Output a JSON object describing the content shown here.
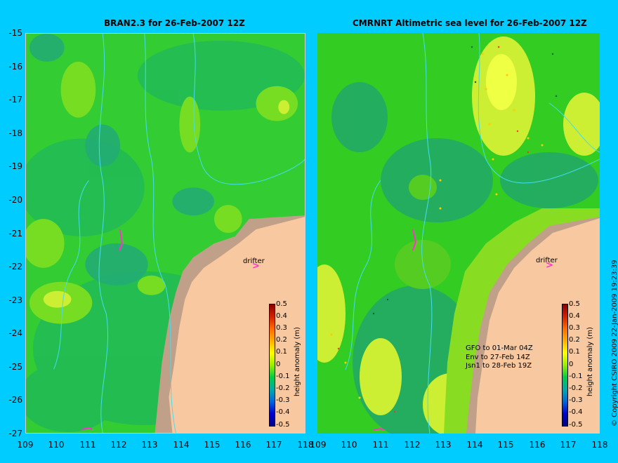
{
  "left_panel": {
    "title": "BRAN2.3 for 26-Feb-2007 12Z",
    "drifter_label": "drifter",
    "colorbar": {
      "title": "height anomaly (m)",
      "ticks": [
        "0.5",
        "0.4",
        "0.3",
        "0.2",
        "0.1",
        "0",
        "-0.1",
        "-0.2",
        "-0.3",
        "-0.4",
        "-0.5"
      ]
    }
  },
  "right_panel": {
    "title": "CMRNRT Altimetric sea level  for 26-Feb-2007 12Z",
    "drifter_label": "drifter",
    "colorbar": {
      "title": "height anomaly (m)",
      "ticks": [
        "0.5",
        "0.4",
        "0.3",
        "0.2",
        "0.1",
        "0",
        "-0.1",
        "-0.2",
        "-0.3",
        "-0.4",
        "-0.5"
      ]
    },
    "satellite_legend": [
      "GFO to 01-Mar 04Z",
      "Env to 27-Feb 14Z",
      "Jsn1 to 28-Feb 19Z"
    ]
  },
  "y_axis_labels": [
    "-15",
    "-16",
    "-17",
    "-18",
    "-19",
    "-20",
    "-21",
    "-22",
    "-23",
    "-24",
    "-25",
    "-26",
    "-27"
  ],
  "x_axis_labels": [
    "109",
    "110",
    "111",
    "112",
    "113",
    "114",
    "115",
    "116",
    "117",
    "118"
  ],
  "copyright": "© Copyright CSIRO 2009   22-Jan-2009 19:23:39",
  "colors": {
    "background": "#00ccff",
    "land": "#f8c8a0",
    "shelf": "#c0a088",
    "sea_green": "#22cc22",
    "drifter_track": "#ff33cc"
  }
}
